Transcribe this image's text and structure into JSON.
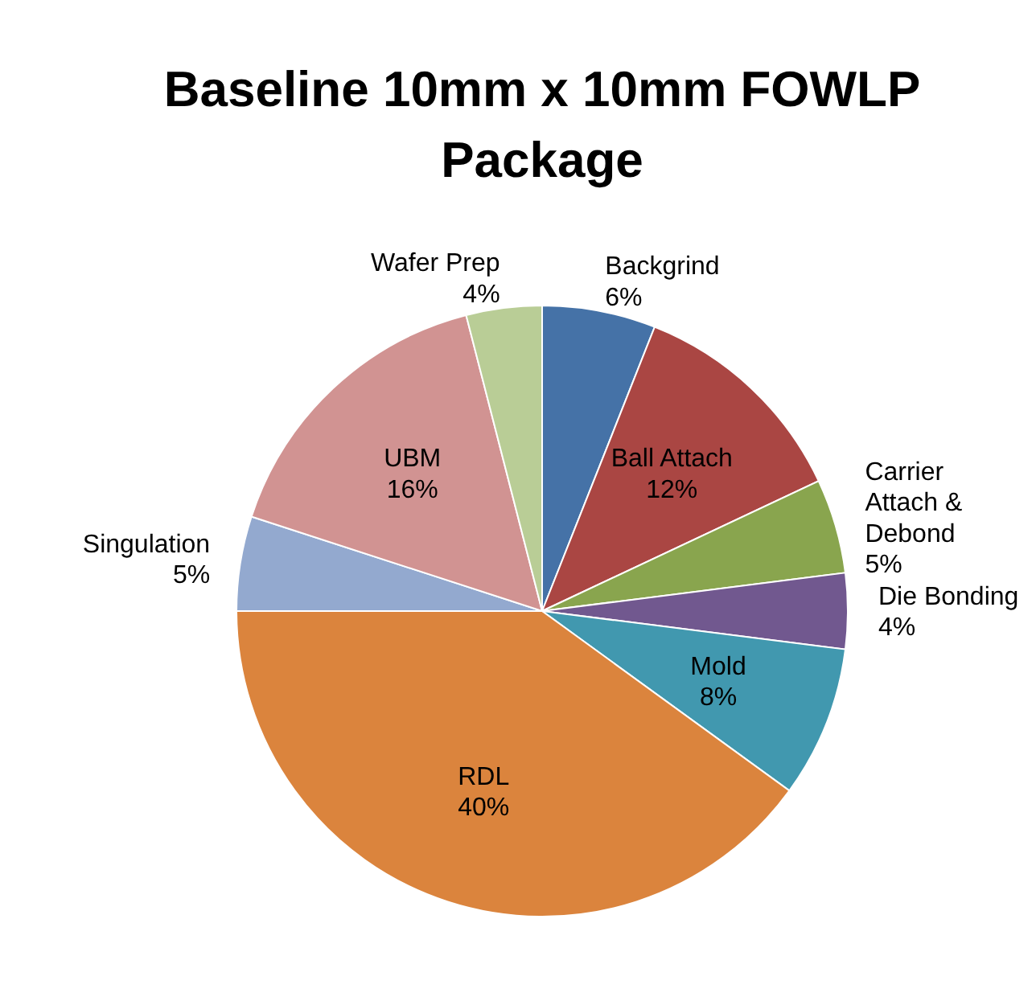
{
  "chart_data": {
    "type": "pie",
    "title": "Baseline 10mm x 10mm FOWLP Package",
    "categories": [
      "Backgrind",
      "Ball Attach",
      "Carrier Attach & Debond",
      "Die Bonding",
      "Mold",
      "RDL",
      "Singulation",
      "UBM",
      "Wafer Prep"
    ],
    "values": [
      6,
      12,
      5,
      4,
      8,
      40,
      5,
      16,
      4
    ],
    "value_labels": [
      "6%",
      "12%",
      "5%",
      "4%",
      "8%",
      "40%",
      "5%",
      "16%",
      "4%"
    ],
    "colors": [
      "#4572a7",
      "#aa4643",
      "#89a54e",
      "#71588f",
      "#4198af",
      "#db843d",
      "#93a9cf",
      "#d19392",
      "#b9cd96"
    ]
  }
}
